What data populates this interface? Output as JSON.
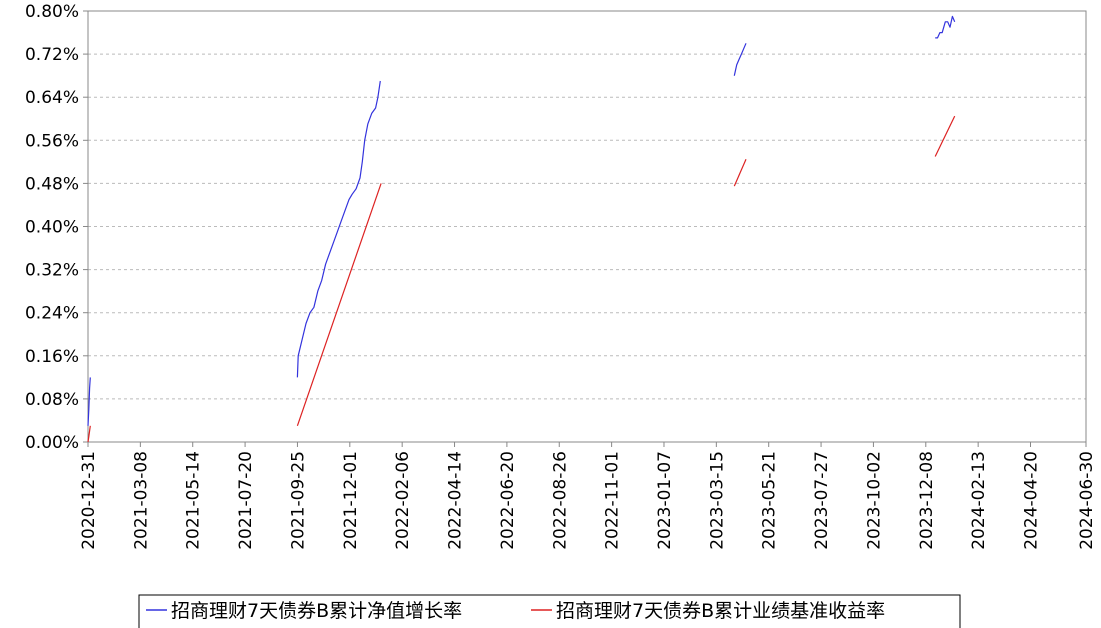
{
  "chart_data": {
    "type": "line",
    "title": "",
    "xlabel": "",
    "ylabel": "",
    "x_range": [
      "2020-12-31",
      "2024-06-30"
    ],
    "x_ticks": [
      "2020-12-31",
      "2021-03-08",
      "2021-05-14",
      "2021-07-20",
      "2021-09-25",
      "2021-12-01",
      "2022-02-06",
      "2022-04-14",
      "2022-06-20",
      "2022-08-26",
      "2022-11-01",
      "2023-01-07",
      "2023-03-15",
      "2023-05-21",
      "2023-07-27",
      "2023-10-02",
      "2023-12-08",
      "2024-02-13",
      "2024-04-20",
      "2024-06-30"
    ],
    "ylim": [
      0,
      0.8
    ],
    "y_ticks": [
      0.0,
      0.08,
      0.16,
      0.24,
      0.32,
      0.4,
      0.48,
      0.56,
      0.64,
      0.72,
      0.8
    ],
    "y_tick_labels": [
      "0.00%",
      "0.08%",
      "0.16%",
      "0.24%",
      "0.32%",
      "0.40%",
      "0.48%",
      "0.56%",
      "0.64%",
      "0.72%",
      "0.80%"
    ],
    "grid": true,
    "legend_position": "bottom",
    "series": [
      {
        "name": "招商理财7天债券B累计净值增长率",
        "color": "#3333dd",
        "segments": [
          [
            [
              "2020-12-31",
              0.03
            ],
            [
              "2021-01-01",
              0.06
            ],
            [
              "2021-01-02",
              0.1
            ],
            [
              "2021-01-03",
              0.12
            ]
          ],
          [
            [
              "2021-09-25",
              0.12
            ],
            [
              "2021-09-26",
              0.16
            ],
            [
              "2021-10-01",
              0.19
            ],
            [
              "2021-10-06",
              0.22
            ],
            [
              "2021-10-11",
              0.24
            ],
            [
              "2021-10-16",
              0.25
            ],
            [
              "2021-10-21",
              0.28
            ],
            [
              "2021-10-26",
              0.3
            ],
            [
              "2021-10-31",
              0.33
            ],
            [
              "2021-11-05",
              0.35
            ],
            [
              "2021-11-10",
              0.37
            ],
            [
              "2021-11-15",
              0.39
            ],
            [
              "2021-11-20",
              0.41
            ],
            [
              "2021-11-25",
              0.43
            ],
            [
              "2021-11-30",
              0.45
            ],
            [
              "2021-12-04",
              0.46
            ],
            [
              "2021-12-09",
              0.47
            ],
            [
              "2021-12-14",
              0.49
            ],
            [
              "2021-12-17",
              0.52
            ],
            [
              "2021-12-20",
              0.56
            ],
            [
              "2021-12-24",
              0.59
            ],
            [
              "2021-12-29",
              0.61
            ],
            [
              "2022-01-03",
              0.62
            ],
            [
              "2022-01-06",
              0.64
            ],
            [
              "2022-01-09",
              0.67
            ]
          ],
          [
            [
              "2023-04-07",
              0.68
            ],
            [
              "2023-04-10",
              0.7
            ],
            [
              "2023-04-13",
              0.71
            ],
            [
              "2023-04-16",
              0.72
            ],
            [
              "2023-04-19",
              0.73
            ],
            [
              "2023-04-22",
              0.74
            ]
          ],
          [
            [
              "2023-12-20",
              0.75
            ],
            [
              "2023-12-23",
              0.75
            ],
            [
              "2023-12-26",
              0.76
            ],
            [
              "2023-12-29",
              0.76
            ],
            [
              "2024-01-02",
              0.78
            ],
            [
              "2024-01-05",
              0.78
            ],
            [
              "2024-01-08",
              0.77
            ],
            [
              "2024-01-11",
              0.79
            ],
            [
              "2024-01-14",
              0.78
            ]
          ]
        ]
      },
      {
        "name": "招商理财7天债券B累计业绩基准收益率",
        "color": "#dd2222",
        "segments": [
          [
            [
              "2020-12-31",
              0.0
            ],
            [
              "2021-01-01",
              0.01
            ],
            [
              "2021-01-03",
              0.03
            ]
          ],
          [
            [
              "2021-09-25",
              0.03
            ],
            [
              "2022-01-10",
              0.48
            ]
          ],
          [
            [
              "2023-04-07",
              0.475
            ],
            [
              "2023-04-22",
              0.525
            ]
          ],
          [
            [
              "2023-12-20",
              0.53
            ],
            [
              "2024-01-14",
              0.605
            ]
          ]
        ]
      }
    ]
  }
}
